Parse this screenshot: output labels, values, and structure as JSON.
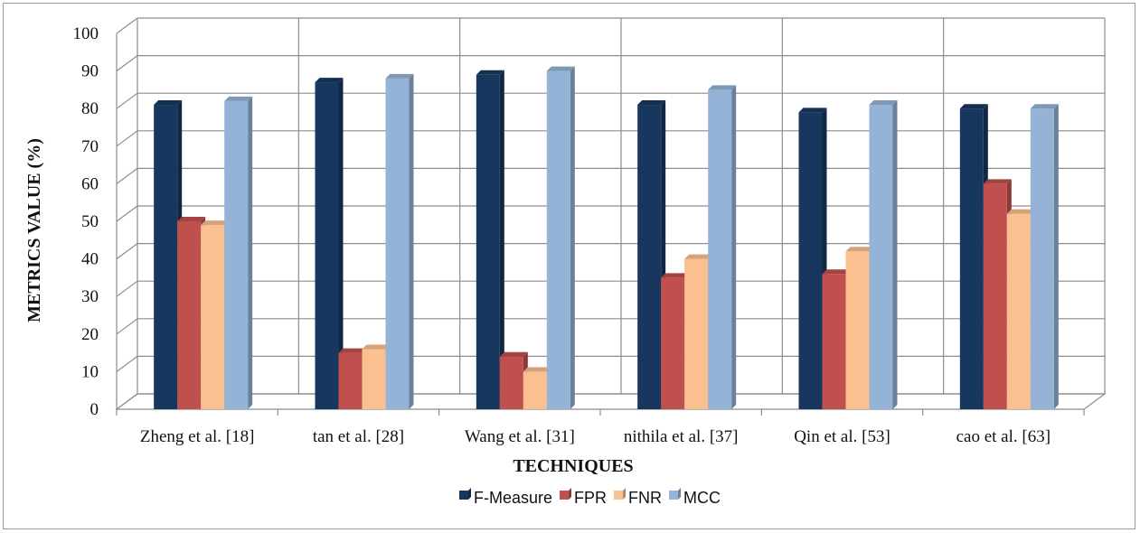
{
  "chart_data": {
    "type": "bar",
    "title": "",
    "xlabel": "TECHNIQUES",
    "ylabel": "METRICS VALUE (%)",
    "ylim": [
      0,
      100
    ],
    "yticks": [
      0,
      10,
      20,
      30,
      40,
      50,
      60,
      70,
      80,
      90,
      100
    ],
    "categories": [
      "Zheng et al. [18]",
      "tan et al.  [28]",
      "Wang et al.  [31]",
      "nithila et al.  [37]",
      "Qin et al.  [53]",
      "cao et al.  [63]"
    ],
    "series": [
      {
        "name": "F-Measure",
        "color": "#17375e",
        "values": [
          81,
          87,
          89,
          81,
          79,
          80
        ]
      },
      {
        "name": "FPR",
        "color": "#c0504d",
        "values": [
          50,
          15,
          14,
          35,
          36,
          60
        ]
      },
      {
        "name": "FNR",
        "color": "#fac090",
        "values": [
          49,
          16,
          10,
          40,
          42,
          52
        ]
      },
      {
        "name": "MCC",
        "color": "#95b3d7",
        "values": [
          82,
          88,
          90,
          85,
          81,
          80
        ]
      }
    ],
    "legend_position": "bottom",
    "grid": true
  }
}
